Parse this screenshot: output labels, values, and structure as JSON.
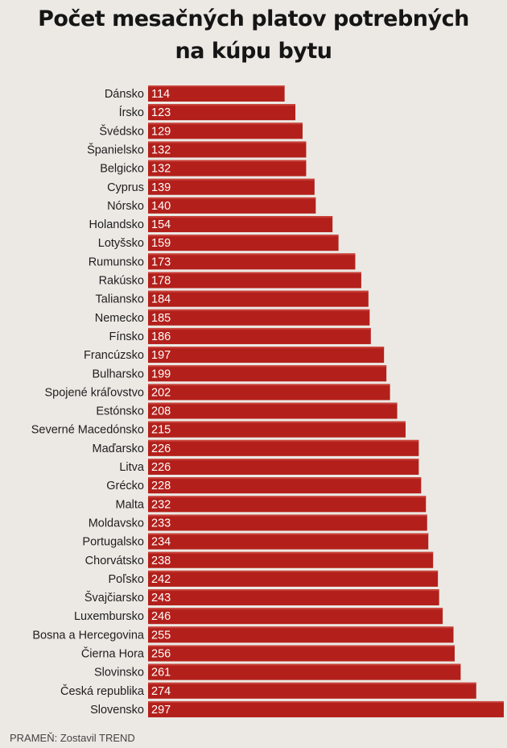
{
  "chart_data": {
    "type": "bar",
    "orientation": "horizontal",
    "title_lines": [
      "Počet mesačných platov potrebných",
      "na kúpu bytu"
    ],
    "categories": [
      "Dánsko",
      "Írsko",
      "Švédsko",
      "Španielsko",
      "Belgicko",
      "Cyprus",
      "Nórsko",
      "Holandsko",
      "Lotyšsko",
      "Rumunsko",
      "Rakúsko",
      "Taliansko",
      "Nemecko",
      "Fínsko",
      "Francúzsko",
      "Bulharsko",
      "Spojené kráľovstvo",
      "Estónsko",
      "Severné Macedónsko",
      "Maďarsko",
      "Litva",
      "Grécko",
      "Malta",
      "Moldavsko",
      "Portugalsko",
      "Chorvátsko",
      "Poľsko",
      "Švajčiarsko",
      "Luxembursko",
      "Bosna a Hercegovina",
      "Čierna Hora",
      "Slovinsko",
      "Česká republika",
      "Slovensko"
    ],
    "values": [
      114,
      123,
      129,
      132,
      132,
      139,
      140,
      154,
      159,
      173,
      178,
      184,
      185,
      186,
      197,
      199,
      202,
      208,
      215,
      226,
      226,
      228,
      232,
      233,
      234,
      238,
      242,
      243,
      246,
      255,
      256,
      261,
      274,
      297
    ],
    "data_labels": true,
    "bar_color": "#b3201b",
    "grid": false
  },
  "source": "PRAMEŇ: Zostavil TREND"
}
